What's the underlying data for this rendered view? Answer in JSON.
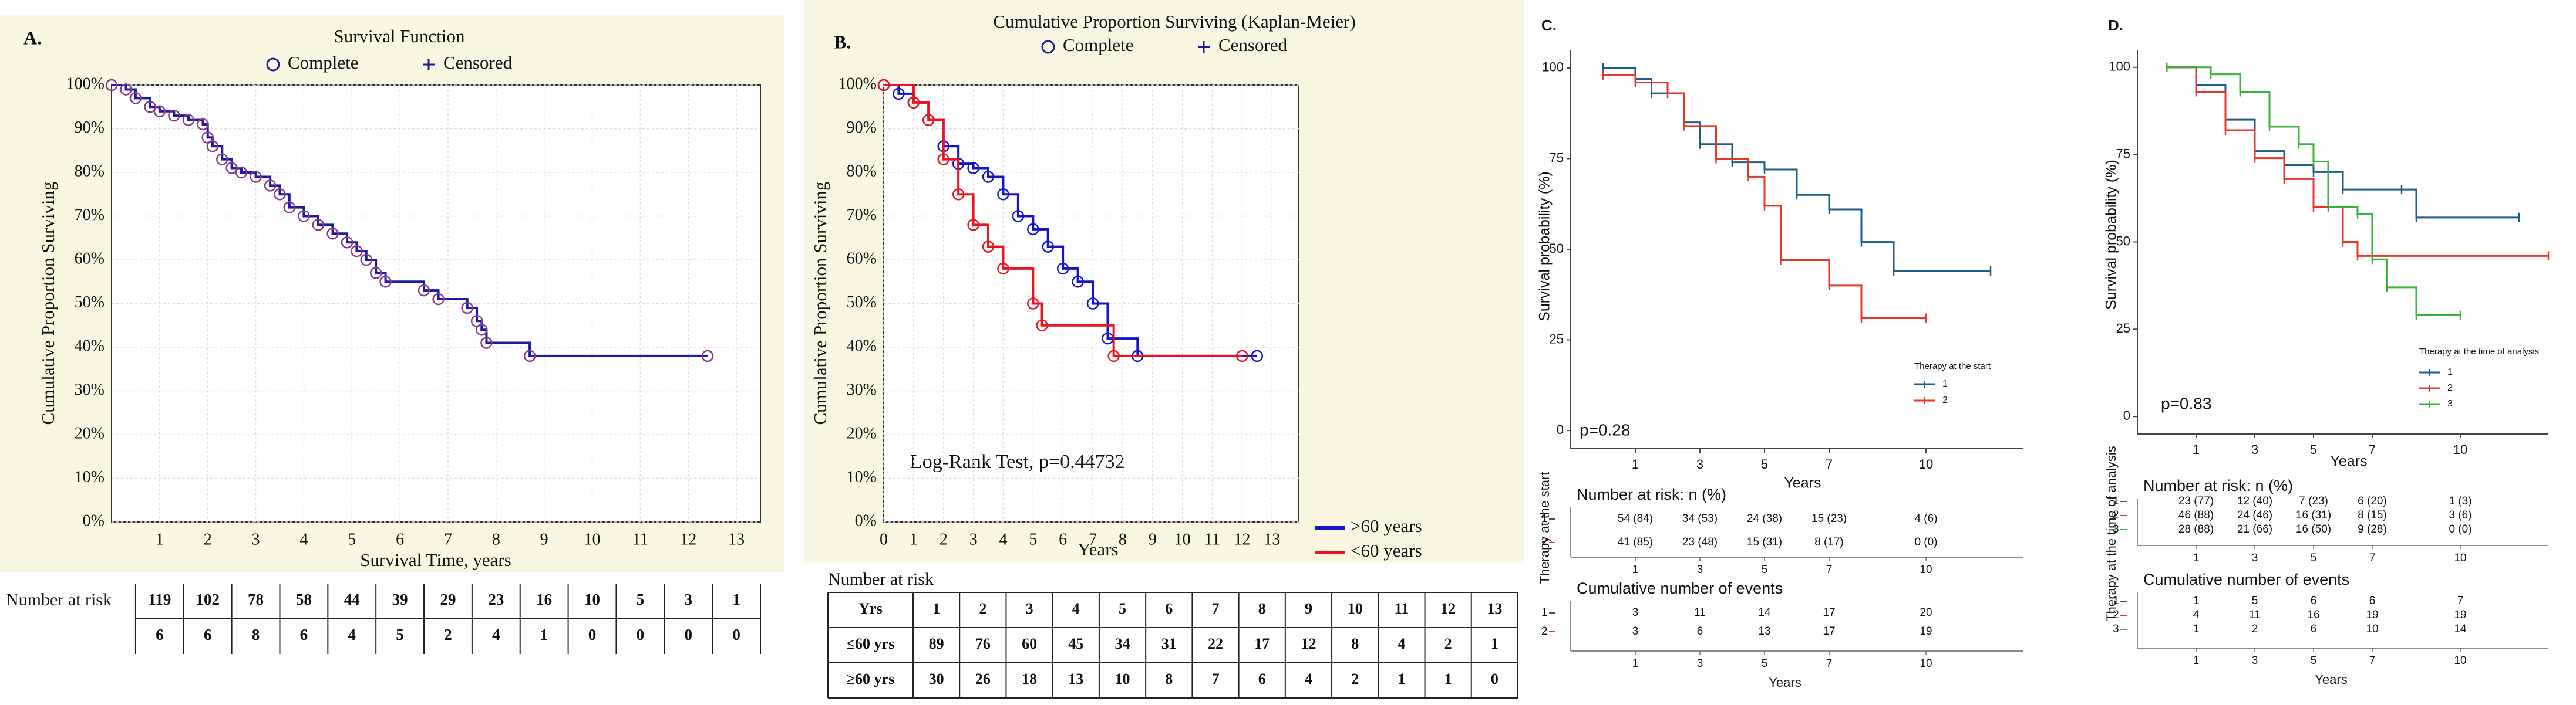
{
  "chart_data": [
    {
      "type": "step",
      "panel": "A.",
      "title": "Survival Function",
      "legend_symbols": [
        "Complete",
        "Censored"
      ],
      "xlabel": "Survival Time, years",
      "ylabel": "Cumulative Proportion Surviving",
      "xlim": [
        0,
        13.5
      ],
      "ylim": [
        0,
        100
      ],
      "grid": true,
      "marker": "circle",
      "xticks": [
        1,
        2,
        3,
        4,
        5,
        6,
        7,
        8,
        9,
        10,
        11,
        12,
        13
      ],
      "yticks": [
        {
          "value": 0,
          "label": "0%"
        },
        {
          "value": 10,
          "label": "10%"
        },
        {
          "value": 20,
          "label": "20%"
        },
        {
          "value": 30,
          "label": "30%"
        },
        {
          "value": 40,
          "label": "40%"
        },
        {
          "value": 50,
          "label": "50%"
        },
        {
          "value": 60,
          "label": "60%"
        },
        {
          "value": 70,
          "label": "70%"
        },
        {
          "value": 80,
          "label": "80%"
        },
        {
          "value": 90,
          "label": "90%"
        },
        {
          "value": 100,
          "label": "100%"
        }
      ],
      "series": [
        {
          "color": "#1c1c9c",
          "marker_color": "#8b3a8b",
          "x": [
            0,
            0.3,
            0.5,
            0.8,
            1,
            1.3,
            1.6,
            1.9,
            2,
            2.1,
            2.3,
            2.5,
            2.7,
            3,
            3.3,
            3.5,
            3.7,
            4,
            4.3,
            4.6,
            4.9,
            5.1,
            5.3,
            5.5,
            5.7,
            6.5,
            6.8,
            7.4,
            7.6,
            7.7,
            7.8,
            8.7,
            12.4
          ],
          "values": [
            100,
            99,
            97,
            95,
            94,
            93,
            92,
            91,
            88,
            86,
            83,
            81,
            80,
            79,
            77,
            75,
            72,
            70,
            68,
            66,
            64,
            62,
            60,
            57,
            55,
            53,
            51,
            49,
            46,
            44,
            41,
            38,
            38
          ]
        }
      ],
      "risk_table": {
        "title": "Number at risk",
        "rows": [
          [
            119,
            102,
            78,
            58,
            44,
            39,
            29,
            23,
            16,
            10,
            5,
            3,
            1
          ],
          [
            6,
            6,
            8,
            6,
            4,
            5,
            2,
            4,
            1,
            0,
            0,
            0,
            0
          ]
        ]
      }
    },
    {
      "type": "step",
      "panel": "B.",
      "title": "Cumulative Proportion Surviving (Kaplan-Meier)",
      "legend_symbols": [
        "Complete",
        "Censored"
      ],
      "xlabel": "Years",
      "ylabel": "Cumulative Proportion Surviving",
      "annotation": "Log-Rank Test, p=0.44732",
      "xlim": [
        0,
        13.9
      ],
      "ylim": [
        0,
        100
      ],
      "grid": true,
      "marker": "circle",
      "xticks": [
        0,
        1,
        2,
        3,
        4,
        5,
        6,
        7,
        8,
        9,
        10,
        11,
        12,
        13
      ],
      "yticks": [
        {
          "value": 0,
          "label": "0%"
        },
        {
          "value": 10,
          "label": "10%"
        },
        {
          "value": 20,
          "label": "20%"
        },
        {
          "value": 30,
          "label": "30%"
        },
        {
          "value": 40,
          "label": "40%"
        },
        {
          "value": 50,
          "label": "50%"
        },
        {
          "value": 60,
          "label": "60%"
        },
        {
          "value": 70,
          "label": "70%"
        },
        {
          "value": 80,
          "label": "80%"
        },
        {
          "value": 90,
          "label": "90%"
        },
        {
          "value": 100,
          "label": "100%"
        }
      ],
      "series": [
        {
          "name": ">60 years",
          "color": "#1414c8",
          "x": [
            0,
            0.5,
            1,
            1.5,
            2,
            2.5,
            3,
            3.5,
            4,
            4.5,
            5,
            5.5,
            6,
            6.5,
            7,
            7.5,
            8.5,
            12.5
          ],
          "values": [
            100,
            98,
            96,
            92,
            86,
            82,
            81,
            79,
            75,
            70,
            67,
            63,
            58,
            55,
            50,
            42,
            38,
            38
          ]
        },
        {
          "name": "<60 years",
          "color": "#e8141e",
          "x": [
            0,
            1,
            1.5,
            2,
            2.5,
            3,
            3.5,
            4,
            5,
            5.3,
            7.7,
            12
          ],
          "values": [
            100,
            96,
            92,
            83,
            75,
            68,
            63,
            58,
            50,
            45,
            38,
            38
          ]
        }
      ],
      "risk_table": {
        "title": "Number at risk",
        "header": [
          "Yrs",
          1,
          2,
          3,
          4,
          5,
          6,
          7,
          8,
          9,
          10,
          11,
          12,
          13
        ],
        "row_labels": [
          "≤60 yrs",
          "≥60 yrs"
        ],
        "rows": [
          [
            89,
            76,
            60,
            45,
            34,
            31,
            22,
            17,
            12,
            8,
            4,
            2,
            1
          ],
          [
            30,
            26,
            18,
            13,
            10,
            8,
            7,
            6,
            4,
            2,
            1,
            1,
            0
          ]
        ]
      }
    },
    {
      "type": "step",
      "panel": "C.",
      "xlabel": "Years",
      "ylabel": "Survival probability (%)",
      "annotation": "p=0.28",
      "legend_title": "Therapy at the start",
      "side_label": "Therapy at the start",
      "xlim": [
        -1,
        13
      ],
      "ylim": [
        -5,
        105
      ],
      "grid": false,
      "marker": "plus",
      "xticks": [
        1,
        3,
        5,
        7,
        10
      ],
      "yticks": [
        0,
        25,
        50,
        75,
        100
      ],
      "series": [
        {
          "name": "1",
          "color": "#1f5c8a",
          "x": [
            0,
            1,
            1.5,
            2.5,
            3,
            4,
            5,
            6,
            7,
            8,
            9,
            12
          ],
          "values": [
            100,
            97,
            93,
            85,
            79,
            74,
            72,
            65,
            61,
            52,
            44,
            44
          ]
        },
        {
          "name": "2",
          "color": "#e8352b",
          "x": [
            0,
            1,
            2,
            2.5,
            3.5,
            4.5,
            5,
            5.5,
            7,
            8,
            10
          ],
          "values": [
            98,
            96,
            93,
            84,
            75,
            70,
            62,
            47,
            40,
            31,
            31
          ]
        }
      ],
      "risk_table": {
        "title": "Number at risk: n (%)",
        "rows": [
          [
            "54 (84)",
            "34 (53)",
            "24 (38)",
            "15 (23)",
            "4 (6)"
          ],
          [
            "41 (85)",
            "23 (48)",
            "15 (31)",
            "8 (17)",
            "0 (0)"
          ]
        ]
      },
      "events_table": {
        "title": "Cumulative number of events",
        "rows": [
          [
            3,
            11,
            14,
            17,
            20
          ],
          [
            3,
            6,
            13,
            17,
            19
          ]
        ]
      }
    },
    {
      "type": "step",
      "panel": "D.",
      "xlabel": "Years",
      "ylabel": "Survival probability (%)",
      "annotation": "p=0.83",
      "legend_title": "Therapy at the time of analysis",
      "side_label": "Therapy at the time of analysis",
      "xlim": [
        -1,
        13
      ],
      "ylim": [
        -5,
        105
      ],
      "grid": false,
      "marker": "plus",
      "xticks": [
        1,
        3,
        5,
        7,
        10
      ],
      "yticks": [
        0,
        25,
        50,
        75,
        100
      ],
      "series": [
        {
          "name": "1",
          "color": "#1f5c8a",
          "x": [
            0,
            1,
            2,
            3,
            4,
            5,
            6,
            8,
            8.5,
            12
          ],
          "values": [
            100,
            95,
            85,
            76,
            72,
            70,
            65,
            65,
            57,
            57
          ]
        },
        {
          "name": "2",
          "color": "#e8352b",
          "x": [
            0,
            1,
            2,
            3,
            4,
            5,
            6,
            6.5,
            13
          ],
          "values": [
            100,
            93,
            82,
            74,
            68,
            60,
            50,
            46,
            46
          ]
        },
        {
          "name": "3",
          "color": "#3bb33b",
          "x": [
            0,
            1.5,
            2.5,
            3.5,
            4.5,
            5,
            5.5,
            6.5,
            7,
            7.5,
            8.5,
            10
          ],
          "values": [
            100,
            98,
            93,
            83,
            78,
            73,
            60,
            58,
            45,
            37,
            29,
            29
          ]
        }
      ],
      "risk_table": {
        "title": "Number at risk: n (%)",
        "rows": [
          [
            "23 (77)",
            "12 (40)",
            "7 (23)",
            "6 (20)",
            "1 (3)"
          ],
          [
            "46 (88)",
            "24 (46)",
            "16 (31)",
            "8 (15)",
            "3 (6)"
          ],
          [
            "28 (88)",
            "21 (66)",
            "16 (50)",
            "9 (28)",
            "0 (0)"
          ]
        ]
      },
      "events_table": {
        "title": "Cumulative number of events",
        "rows": [
          [
            1,
            5,
            6,
            6,
            7
          ],
          [
            4,
            11,
            16,
            19,
            19
          ],
          [
            1,
            2,
            6,
            10,
            14
          ]
        ]
      }
    }
  ]
}
